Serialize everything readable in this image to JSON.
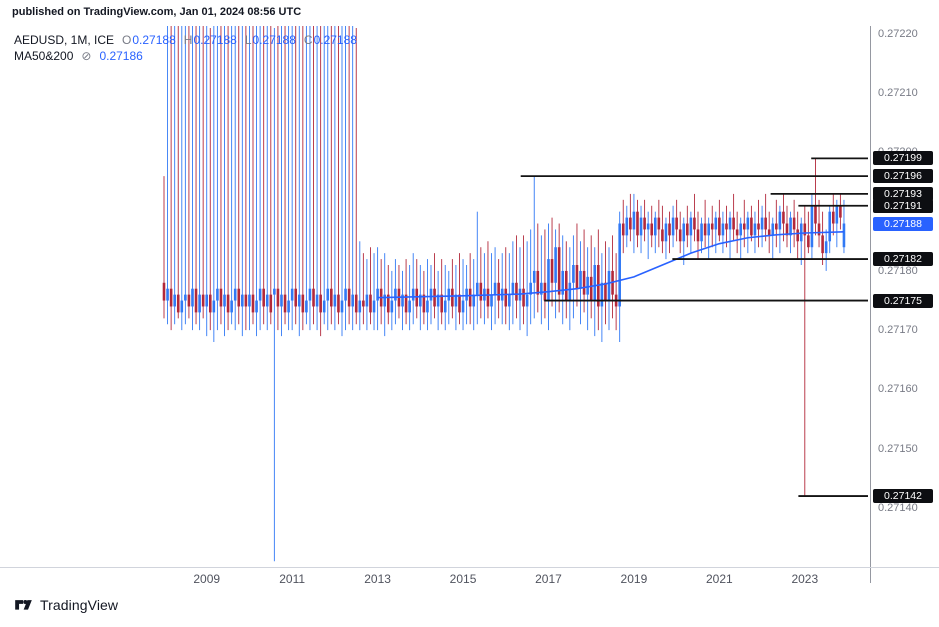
{
  "header": {
    "published": "published on TradingView.com, Jan 01, 2024 08:56 UTC"
  },
  "legend": {
    "symbol": "AEDUSD, 1M, ICE",
    "ohlc": [
      {
        "k": "O",
        "v": "0.27188"
      },
      {
        "k": "H",
        "v": "0.27188"
      },
      {
        "k": "L",
        "v": "0.27188"
      },
      {
        "k": "C",
        "v": "0.27188"
      }
    ],
    "ma": {
      "label": "MA50&200",
      "icon": "⊘",
      "value": "0.27186"
    }
  },
  "footer": {
    "brand": "TradingView"
  },
  "colors": {
    "up": "#3179f5",
    "down": "#b2283a",
    "accent": "#2962ff",
    "label_bg": "#0d0e12",
    "last_label_bg": "#2962ff",
    "axis_text": "#787b86",
    "year_text": "#50535e",
    "level_line": "#131313"
  },
  "chart_data": {
    "type": "candlestick",
    "symbol": "AEDUSD",
    "timeframe": "1M",
    "exchange": "ICE",
    "price_encoding": "price = 0.27 + v/100000 (all v values below)",
    "start_year": 2008,
    "ylim_price": [
      0.2713,
      0.27221
    ],
    "price_ticks": [
      "0.27220",
      "0.27210",
      "0.27200",
      "0.27180",
      "0.27170",
      "0.27160",
      "0.27150",
      "0.27140"
    ],
    "year_ticks": [
      "2009",
      "2011",
      "2013",
      "2015",
      "2017",
      "2019",
      "2021",
      "2023"
    ],
    "last_price": {
      "v": 188,
      "label": "0.27188"
    },
    "ma50": {
      "value_label": "0.27186",
      "points": [
        [
          60,
          175.5
        ],
        [
          84,
          175.8
        ],
        [
          100,
          176.1
        ],
        [
          108,
          176.5
        ],
        [
          116,
          177
        ],
        [
          124,
          177.8
        ],
        [
          132,
          179
        ],
        [
          140,
          181
        ],
        [
          148,
          183
        ],
        [
          156,
          184.6
        ],
        [
          164,
          185.6
        ],
        [
          172,
          186.1
        ],
        [
          180,
          186.4
        ],
        [
          191,
          186.6
        ]
      ]
    },
    "level_lines": [
      {
        "v": 199,
        "label": "0.27199",
        "from_year": 2023.15
      },
      {
        "v": 196,
        "label": "0.27196",
        "from_year": 2016.35
      },
      {
        "v": 193,
        "label": "0.27193",
        "from_year": 2022.2
      },
      {
        "v": 191,
        "label": "0.27191",
        "from_year": 2022.85
      },
      {
        "v": 182,
        "label": "0.27182",
        "from_year": 2019.9
      },
      {
        "v": 175,
        "label": "0.27175",
        "from_year": 2016.9
      },
      {
        "v": 142,
        "label": "0.27142",
        "from_year": 2022.85
      }
    ],
    "candles": [
      [
        178,
        196,
        172,
        175
      ],
      [
        175,
        222,
        171,
        177
      ],
      [
        177,
        223,
        170,
        174
      ],
      [
        174,
        225,
        171,
        176
      ],
      [
        176,
        224,
        172,
        173
      ],
      [
        173,
        222,
        170,
        175
      ],
      [
        175,
        226,
        171,
        176
      ],
      [
        176,
        223,
        172,
        174
      ],
      [
        174,
        225,
        170,
        177
      ],
      [
        177,
        224,
        171,
        173
      ],
      [
        173,
        222,
        170,
        176
      ],
      [
        176,
        225,
        172,
        174
      ],
      [
        174,
        223,
        169,
        176
      ],
      [
        176,
        221,
        170,
        173
      ],
      [
        173,
        224,
        168,
        175
      ],
      [
        175,
        222,
        170,
        177
      ],
      [
        177,
        225,
        171,
        174
      ],
      [
        174,
        223,
        169,
        176
      ],
      [
        176,
        222,
        170,
        173
      ],
      [
        173,
        226,
        171,
        175
      ],
      [
        175,
        224,
        170,
        177
      ],
      [
        177,
        222,
        171,
        174
      ],
      [
        174,
        225,
        169,
        176
      ],
      [
        176,
        223,
        170,
        174
      ],
      [
        174,
        224,
        170,
        176
      ],
      [
        176,
        222,
        171,
        173
      ],
      [
        173,
        225,
        169,
        175
      ],
      [
        175,
        223,
        170,
        177
      ],
      [
        177,
        224,
        171,
        174
      ],
      [
        174,
        222,
        170,
        176
      ],
      [
        176,
        225,
        171,
        173
      ],
      [
        176,
        221,
        131,
        177
      ],
      [
        177,
        223,
        170,
        174
      ],
      [
        174,
        224,
        169,
        176
      ],
      [
        176,
        222,
        171,
        173
      ],
      [
        173,
        225,
        170,
        175
      ],
      [
        175,
        223,
        170,
        177
      ],
      [
        177,
        225,
        171,
        174
      ],
      [
        174,
        222,
        169,
        176
      ],
      [
        176,
        224,
        170,
        173
      ],
      [
        173,
        223,
        171,
        175
      ],
      [
        175,
        225,
        170,
        177
      ],
      [
        177,
        222,
        171,
        174
      ],
      [
        174,
        224,
        170,
        176
      ],
      [
        176,
        223,
        169,
        173
      ],
      [
        173,
        225,
        171,
        175
      ],
      [
        175,
        222,
        170,
        177
      ],
      [
        177,
        224,
        171,
        174
      ],
      [
        174,
        223,
        170,
        176
      ],
      [
        176,
        225,
        171,
        173
      ],
      [
        173,
        222,
        169,
        175
      ],
      [
        175,
        224,
        170,
        177
      ],
      [
        177,
        223,
        171,
        174
      ],
      [
        174,
        222,
        170,
        176
      ],
      [
        176,
        221,
        171,
        173
      ],
      [
        173,
        185,
        170,
        175
      ],
      [
        175,
        183,
        171,
        174
      ],
      [
        174,
        182,
        170,
        176
      ],
      [
        176,
        184,
        171,
        173
      ],
      [
        173,
        183,
        170,
        175
      ],
      [
        175,
        184,
        170,
        177
      ],
      [
        177,
        182,
        171,
        174
      ],
      [
        174,
        183,
        169,
        176
      ],
      [
        176,
        181,
        171,
        173
      ],
      [
        173,
        180,
        170,
        175
      ],
      [
        175,
        182,
        171,
        177
      ],
      [
        177,
        181,
        172,
        174
      ],
      [
        174,
        180,
        170,
        176
      ],
      [
        176,
        182,
        171,
        173
      ],
      [
        173,
        181,
        170,
        175
      ],
      [
        175,
        183,
        171,
        177
      ],
      [
        177,
        182,
        172,
        174
      ],
      [
        174,
        181,
        170,
        176
      ],
      [
        176,
        180,
        171,
        173
      ],
      [
        173,
        182,
        170,
        175
      ],
      [
        175,
        181,
        171,
        177
      ],
      [
        177,
        183,
        172,
        174
      ],
      [
        174,
        180,
        170,
        176
      ],
      [
        176,
        182,
        171,
        173
      ],
      [
        173,
        181,
        170,
        175
      ],
      [
        175,
        180,
        171,
        177
      ],
      [
        177,
        182,
        172,
        174
      ],
      [
        174,
        181,
        170,
        176
      ],
      [
        176,
        183,
        171,
        173
      ],
      [
        173,
        182,
        170,
        175
      ],
      [
        175,
        181,
        171,
        177
      ],
      [
        177,
        183,
        171,
        174
      ],
      [
        174,
        182,
        170,
        176
      ],
      [
        176,
        190,
        171,
        178
      ],
      [
        178,
        184,
        172,
        175
      ],
      [
        175,
        183,
        171,
        177
      ],
      [
        177,
        185,
        172,
        174
      ],
      [
        174,
        183,
        170,
        176
      ],
      [
        176,
        184,
        171,
        178
      ],
      [
        178,
        182,
        172,
        175
      ],
      [
        175,
        183,
        171,
        177
      ],
      [
        177,
        184,
        171,
        174
      ],
      [
        174,
        183,
        170,
        176
      ],
      [
        176,
        185,
        171,
        178
      ],
      [
        178,
        186,
        172,
        175
      ],
      [
        175,
        184,
        170,
        177
      ],
      [
        177,
        186,
        171,
        174
      ],
      [
        174,
        185,
        169,
        176
      ],
      [
        176,
        187,
        171,
        178
      ],
      [
        178,
        196,
        172,
        180
      ],
      [
        180,
        188,
        173,
        176
      ],
      [
        176,
        186,
        171,
        178
      ],
      [
        178,
        187,
        172,
        175
      ],
      [
        175,
        188,
        170,
        182
      ],
      [
        182,
        189,
        174,
        178
      ],
      [
        178,
        187,
        172,
        184
      ],
      [
        184,
        188,
        173,
        176
      ],
      [
        176,
        186,
        171,
        180
      ],
      [
        180,
        185,
        172,
        175
      ],
      [
        175,
        184,
        170,
        178
      ],
      [
        178,
        186,
        172,
        181
      ],
      [
        181,
        188,
        174,
        177
      ],
      [
        177,
        185,
        171,
        180
      ],
      [
        180,
        187,
        173,
        176
      ],
      [
        176,
        184,
        170,
        179
      ],
      [
        179,
        186,
        172,
        175
      ],
      [
        175,
        184,
        169,
        181
      ],
      [
        181,
        187,
        170,
        174
      ],
      [
        174,
        183,
        168,
        178
      ],
      [
        178,
        185,
        171,
        175
      ],
      [
        175,
        184,
        170,
        180
      ],
      [
        180,
        186,
        172,
        176
      ],
      [
        176,
        183,
        170,
        174
      ],
      [
        174,
        190,
        168,
        188
      ],
      [
        188,
        192,
        183,
        186
      ],
      [
        186,
        191,
        184,
        189
      ],
      [
        189,
        193,
        185,
        187
      ],
      [
        187,
        193,
        183,
        190
      ],
      [
        190,
        192,
        184,
        186
      ],
      [
        186,
        191,
        183,
        189
      ],
      [
        189,
        192,
        185,
        187
      ],
      [
        187,
        190,
        182,
        188
      ],
      [
        188,
        191,
        184,
        186
      ],
      [
        186,
        190,
        183,
        189
      ],
      [
        189,
        192,
        184,
        187
      ],
      [
        187,
        191,
        183,
        185
      ],
      [
        185,
        189,
        182,
        188
      ],
      [
        188,
        190,
        183,
        186
      ],
      [
        186,
        191,
        184,
        189
      ],
      [
        189,
        192,
        185,
        187
      ],
      [
        187,
        190,
        183,
        185
      ],
      [
        185,
        189,
        181,
        188
      ],
      [
        188,
        191,
        184,
        186
      ],
      [
        186,
        190,
        183,
        189
      ],
      [
        189,
        193,
        185,
        187
      ],
      [
        187,
        190,
        182,
        185
      ],
      [
        185,
        189,
        183,
        188
      ],
      [
        188,
        192,
        184,
        186
      ],
      [
        186,
        189,
        182,
        188
      ],
      [
        188,
        191,
        184,
        187
      ],
      [
        187,
        190,
        183,
        189
      ],
      [
        189,
        192,
        185,
        186
      ],
      [
        186,
        190,
        183,
        188
      ],
      [
        188,
        191,
        184,
        187
      ],
      [
        187,
        190,
        182,
        189
      ],
      [
        189,
        193,
        185,
        187
      ],
      [
        187,
        190,
        183,
        186
      ],
      [
        186,
        189,
        182,
        188
      ],
      [
        188,
        192,
        184,
        187
      ],
      [
        187,
        190,
        183,
        189
      ],
      [
        189,
        191,
        185,
        186
      ],
      [
        186,
        190,
        183,
        188
      ],
      [
        188,
        192,
        184,
        187
      ],
      [
        187,
        191,
        184,
        189
      ],
      [
        189,
        193,
        185,
        187
      ],
      [
        187,
        190,
        183,
        186
      ],
      [
        186,
        189,
        182,
        188
      ],
      [
        188,
        192,
        184,
        187
      ],
      [
        187,
        191,
        183,
        190
      ],
      [
        190,
        193,
        185,
        188
      ],
      [
        188,
        191,
        184,
        186
      ],
      [
        186,
        190,
        183,
        189
      ],
      [
        189,
        192,
        184,
        187
      ],
      [
        187,
        190,
        182,
        185
      ],
      [
        185,
        189,
        181,
        188
      ],
      [
        188,
        191,
        142,
        186
      ],
      [
        186,
        190,
        183,
        184
      ],
      [
        184,
        193,
        182,
        191
      ],
      [
        191,
        199,
        186,
        188
      ],
      [
        188,
        192,
        184,
        186
      ],
      [
        186,
        190,
        181,
        183
      ],
      [
        183,
        187,
        180,
        185
      ],
      [
        185,
        191,
        183,
        190
      ],
      [
        190,
        193,
        186,
        188
      ],
      [
        188,
        192,
        184,
        191
      ],
      [
        191,
        193,
        187,
        189
      ],
      [
        184,
        192,
        183,
        188
      ]
    ]
  }
}
